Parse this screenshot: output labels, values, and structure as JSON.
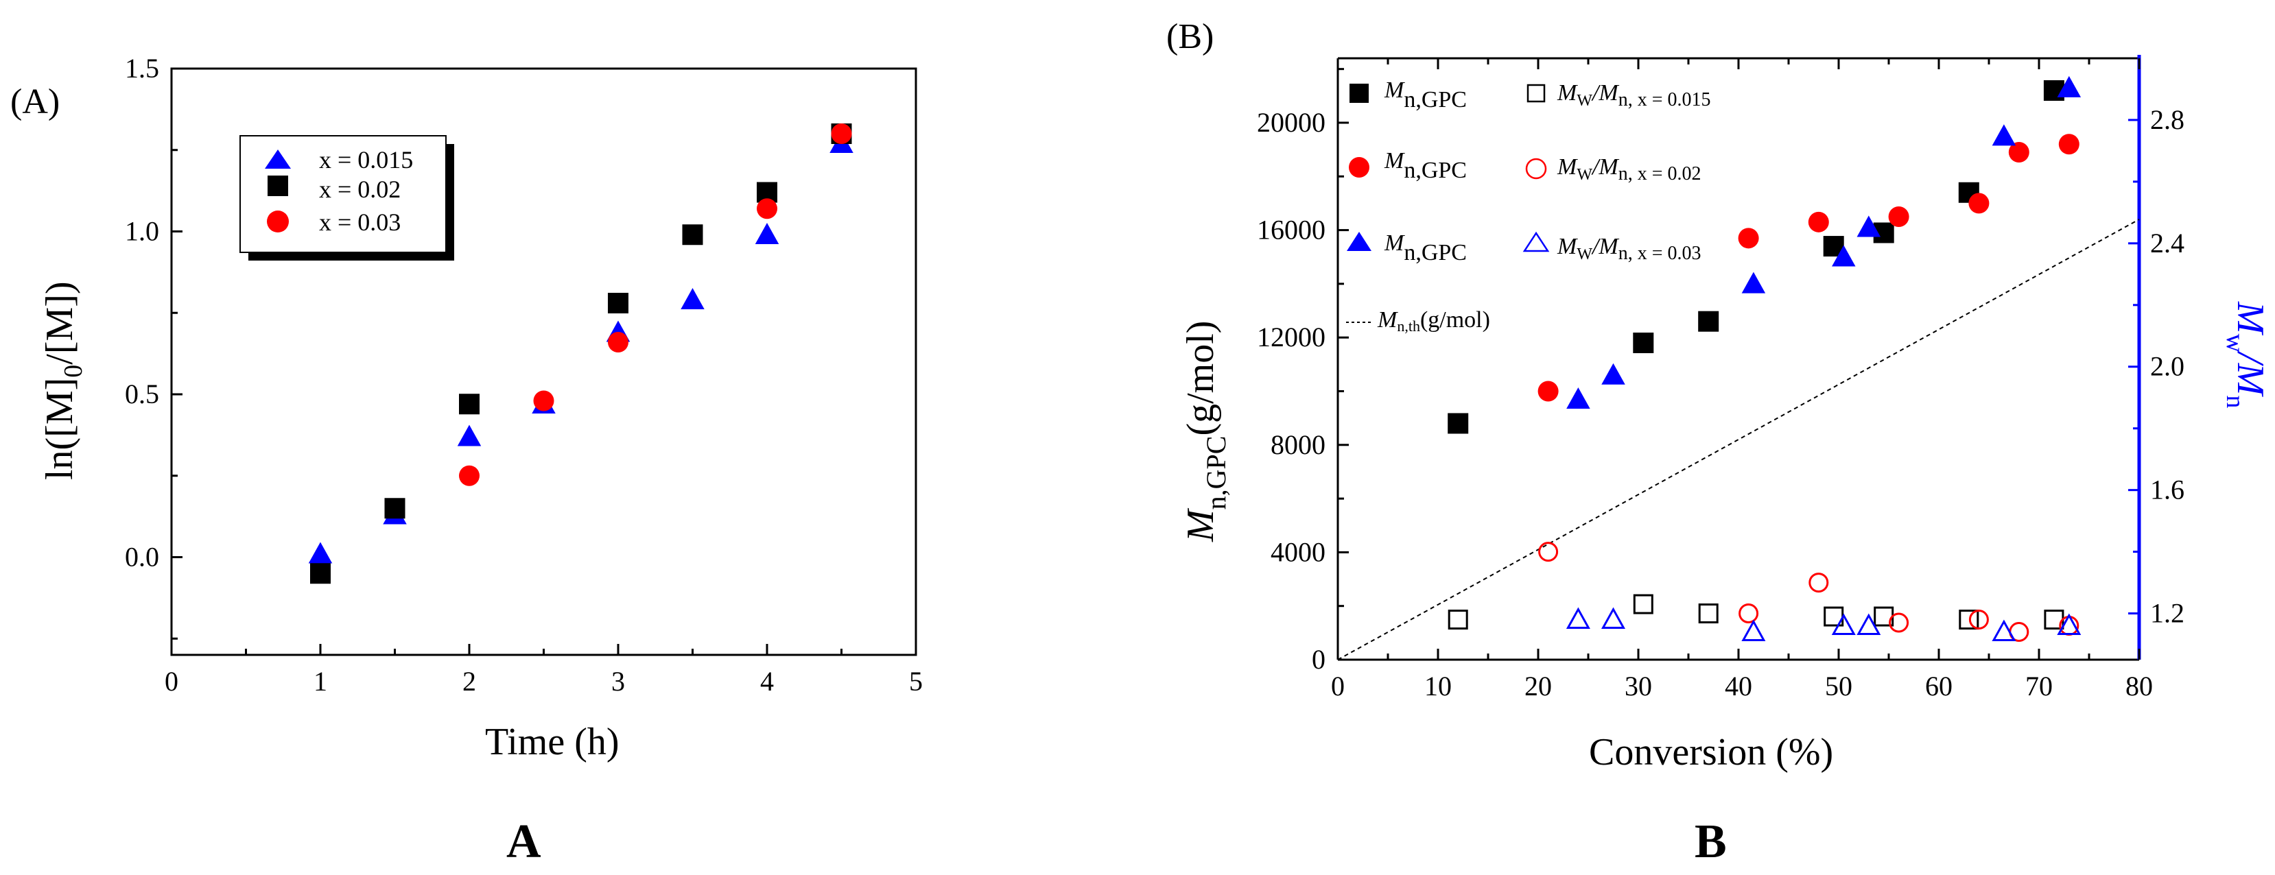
{
  "figure": {
    "caption_left": "A",
    "caption_right": "B"
  },
  "chart_data": [
    {
      "type": "scatter",
      "panel_label": "(A)",
      "title": "",
      "xlabel": "Time (h)",
      "ylabel": "ln([M]0/[M])",
      "ylabel_parts": [
        "ln([M]",
        "0",
        "/[M])"
      ],
      "xlim": [
        0,
        5
      ],
      "ylim": [
        -0.3,
        1.5
      ],
      "xticks": [
        0,
        1,
        2,
        3,
        4,
        5
      ],
      "xtick_labels": [
        "0",
        "1",
        "2",
        "3",
        "4",
        "5"
      ],
      "yticks": [
        0.0,
        0.5,
        1.0,
        1.5
      ],
      "ytick_labels": [
        "0.0",
        "0.5",
        "1.0",
        "1.5"
      ],
      "legend_position": "top-left",
      "series": [
        {
          "name": "x = 0.015",
          "marker": "triangle",
          "color": "#0000ff",
          "x": [
            1,
            1.5,
            2,
            2.5,
            3,
            3.5,
            4,
            4.5
          ],
          "y": [
            0.01,
            0.13,
            0.37,
            0.47,
            0.69,
            0.79,
            0.99,
            1.27
          ]
        },
        {
          "name": "x = 0.02",
          "marker": "square",
          "color": "#000000",
          "x": [
            1,
            1.5,
            2,
            3,
            3.5,
            4,
            4.5
          ],
          "y": [
            -0.05,
            0.15,
            0.47,
            0.78,
            0.99,
            1.12,
            1.3
          ]
        },
        {
          "name": "x = 0.03",
          "marker": "circle",
          "color": "#ff0000",
          "x": [
            2,
            2.5,
            3,
            4,
            4.5
          ],
          "y": [
            0.25,
            0.48,
            0.66,
            1.07,
            1.3
          ]
        }
      ]
    },
    {
      "type": "scatter",
      "panel_label": "(B)",
      "title": "",
      "xlabel": "Conversion (%)",
      "ylabel": "Mn,GPC(g/mol)",
      "ylabel_parts": [
        "M",
        "n,GPC",
        "(g/mol)"
      ],
      "y2label": "Mw/Mn",
      "y2label_parts": [
        "M",
        "w",
        "/M",
        "n"
      ],
      "xlim": [
        0,
        80
      ],
      "ylim": [
        0,
        22400
      ],
      "y2lim": [
        1.05,
        3.0
      ],
      "xticks": [
        0,
        10,
        20,
        30,
        40,
        50,
        60,
        70,
        80
      ],
      "xtick_labels": [
        "0",
        "10",
        "20",
        "30",
        "40",
        "50",
        "60",
        "70",
        "80"
      ],
      "yticks": [
        0,
        4000,
        8000,
        12000,
        16000,
        20000
      ],
      "ytick_labels": [
        "0",
        "4000",
        "8000",
        "12000",
        "16000",
        "20000"
      ],
      "y2ticks": [
        1.2,
        1.6,
        2.0,
        2.4,
        2.8
      ],
      "y2tick_labels": [
        "1.2",
        "1.6",
        "2.0",
        "2.4",
        "2.8"
      ],
      "axis_colors": {
        "left": "#000000",
        "right": "#0000ff"
      },
      "legend_position": "top-left",
      "legend": [
        {
          "marker": "square-filled",
          "color": "#000000",
          "label_main": "M",
          "label_sub": "n,GPC",
          "marker2": "square-open",
          "label2_main": "M",
          "label2_sub": "W",
          "label2_mid": "/M",
          "label2_sub2": "n, x = 0.015"
        },
        {
          "marker": "circle-filled",
          "color": "#ff0000",
          "label_main": "M",
          "label_sub": "n,GPC",
          "marker2": "circle-open",
          "label2_main": "M",
          "label2_sub": "W",
          "label2_mid": "/M",
          "label2_sub2": "n, x = 0.02"
        },
        {
          "marker": "triangle-filled",
          "color": "#0000ff",
          "label_main": "M",
          "label_sub": "n,GPC",
          "marker2": "triangle-open",
          "label2_main": "M",
          "label2_sub": "W",
          "label2_mid": "/M",
          "label2_sub2": "n, x = 0.03"
        }
      ],
      "theory_line": {
        "label_main": "M",
        "label_sub": "n,th",
        "label_tail": "(g/mol)",
        "x": [
          0,
          80
        ],
        "y": [
          0,
          16400
        ]
      },
      "series": [
        {
          "name": "Mn,GPC x = 0.015",
          "axis": "left",
          "marker": "square",
          "filled": true,
          "color": "#000000",
          "x": [
            12,
            30.5,
            37,
            49.5,
            54.5,
            63,
            71.5
          ],
          "y": [
            8800,
            11800,
            12600,
            15400,
            15900,
            17400,
            21200
          ]
        },
        {
          "name": "Mn,GPC x = 0.02",
          "axis": "left",
          "marker": "circle",
          "filled": true,
          "color": "#ff0000",
          "x": [
            21,
            41,
            48,
            56,
            64,
            68,
            73
          ],
          "y": [
            10000,
            15700,
            16300,
            16500,
            17000,
            18900,
            19200
          ]
        },
        {
          "name": "Mn,GPC x = 0.03",
          "axis": "left",
          "marker": "triangle",
          "filled": true,
          "color": "#0000ff",
          "x": [
            24,
            27.5,
            41.5,
            50.5,
            53,
            66.5,
            73
          ],
          "y": [
            9700,
            10600,
            14000,
            15000,
            16100,
            19500,
            21300
          ]
        },
        {
          "name": "Mw/Mn x = 0.015",
          "axis": "right",
          "marker": "square",
          "filled": false,
          "color": "#000000",
          "x": [
            12,
            30.5,
            37,
            49.5,
            54.5,
            63,
            71.5
          ],
          "y": [
            1.18,
            1.23,
            1.2,
            1.19,
            1.19,
            1.18,
            1.18
          ]
        },
        {
          "name": "Mw/Mn x = 0.02",
          "axis": "right",
          "marker": "circle",
          "filled": false,
          "color": "#ff0000",
          "x": [
            21,
            41,
            48,
            56,
            64,
            68,
            73
          ],
          "y": [
            1.4,
            1.2,
            1.3,
            1.17,
            1.18,
            1.14,
            1.16
          ]
        },
        {
          "name": "Mw/Mn x = 0.03",
          "axis": "right",
          "marker": "triangle",
          "filled": false,
          "color": "#0000ff",
          "x": [
            24,
            27.5,
            41.5,
            50.5,
            53,
            66.5,
            73
          ],
          "y": [
            1.18,
            1.18,
            1.14,
            1.16,
            1.16,
            1.14,
            1.16
          ]
        }
      ]
    }
  ]
}
